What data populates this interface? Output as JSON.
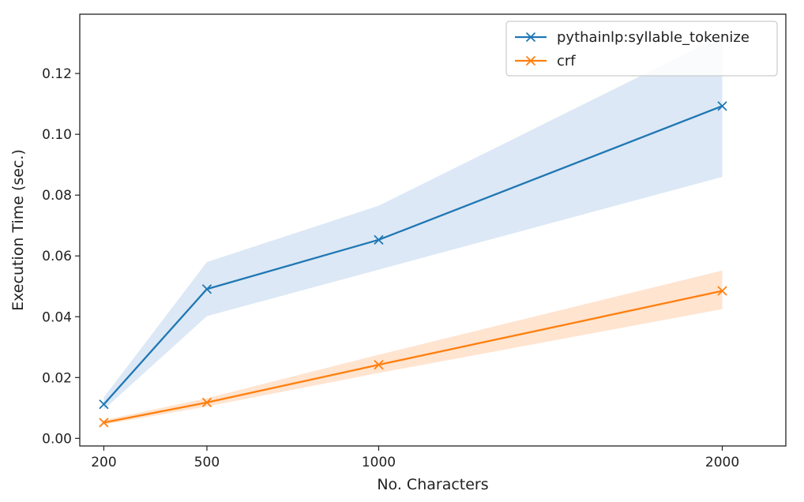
{
  "chart_data": {
    "type": "line",
    "title": "",
    "xlabel": "No. Characters",
    "ylabel": "Execution Time (sec.)",
    "xlim": [
      130,
      2185
    ],
    "ylim": [
      -0.0025,
      0.1395
    ],
    "x_ticks": [
      200,
      500,
      1000,
      2000
    ],
    "x_tick_labels": [
      "200",
      "500",
      "1000",
      "2000"
    ],
    "y_ticks": [
      0.0,
      0.02,
      0.04,
      0.06,
      0.08,
      0.1,
      0.12
    ],
    "y_tick_labels": [
      "0.00",
      "0.02",
      "0.04",
      "0.06",
      "0.08",
      "0.10",
      "0.12"
    ],
    "grid": false,
    "legend_position": "top-right",
    "x": [
      200,
      500,
      1000,
      2000
    ],
    "series": [
      {
        "name": "pythainlp:syllable_tokenize",
        "color": "#1f77b4",
        "band_color": "#dce8f5",
        "marker": "x",
        "values": [
          0.0112,
          0.0491,
          0.0653,
          0.1093
        ],
        "band_low": [
          0.0095,
          0.0402,
          0.0555,
          0.086
        ],
        "band_high": [
          0.0135,
          0.058,
          0.0765,
          0.1325
        ]
      },
      {
        "name": "crf",
        "color": "#ff7f0e",
        "band_color": "#ffe4d0",
        "marker": "x",
        "values": [
          0.0052,
          0.0118,
          0.0242,
          0.0485
        ],
        "band_low": [
          0.0045,
          0.0105,
          0.0215,
          0.0425
        ],
        "band_high": [
          0.006,
          0.0132,
          0.0275,
          0.0552
        ]
      }
    ]
  }
}
